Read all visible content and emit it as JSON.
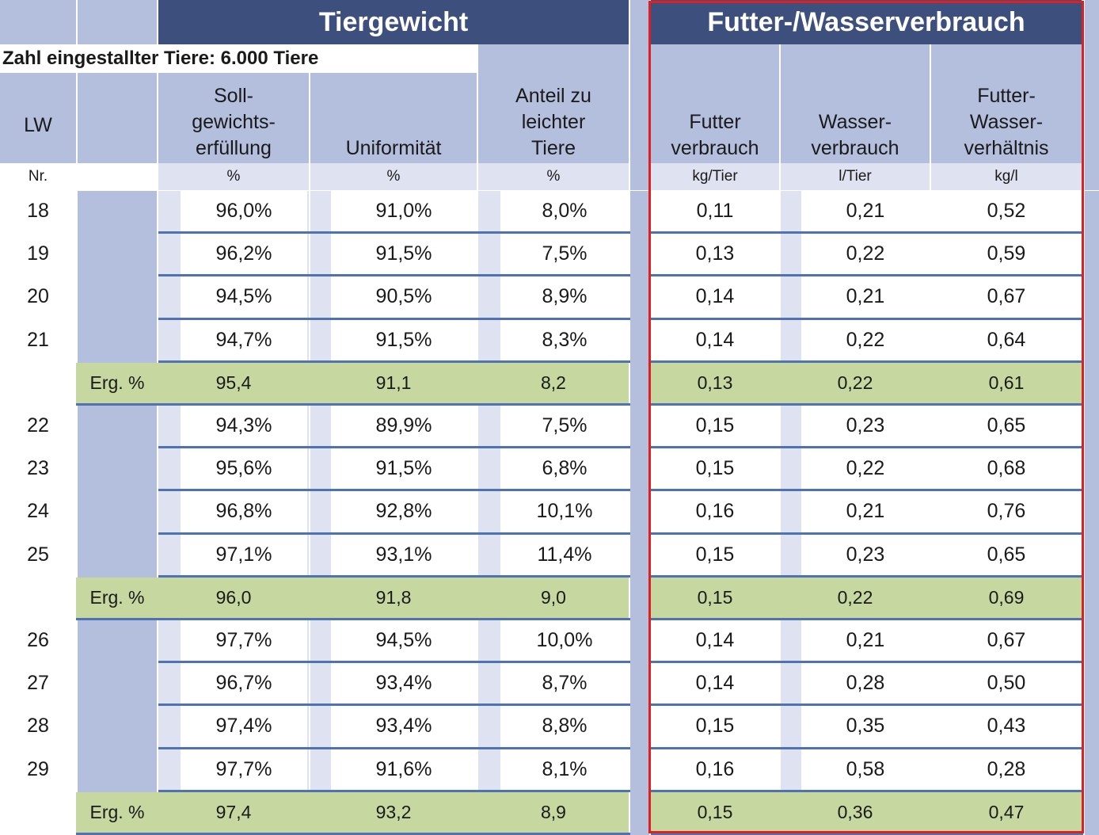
{
  "titles": {
    "tiergewicht": "Tiergewicht",
    "futter_wasser": "Futter-/Wasserverbrauch"
  },
  "subtitle": "Zahl eingestallter Tiere: 6.000 Tiere",
  "headers": {
    "lw": "LW",
    "nr": "Nr.",
    "soll": "Soll-\ngewichts-\nerfüllung",
    "uniform": "Uniformität",
    "anteil": "Anteil zu\nleichter\nTiere",
    "futter": "Futter\nverbrauch",
    "wasser": "Wasser-\nverbrauch",
    "verh": "Futter-\nWasser-\nverhältnis"
  },
  "units": {
    "soll": "%",
    "uniform": "%",
    "anteil": "%",
    "futter": "kg/Tier",
    "wasser": "l/Tier",
    "verh": "kg/l"
  },
  "rows": [
    {
      "type": "data",
      "lw": "18",
      "soll": "96,0%",
      "uniform": "91,0%",
      "anteil": "8,0%",
      "futter": "0,11",
      "wasser": "0,21",
      "verh": "0,52"
    },
    {
      "type": "data",
      "lw": "19",
      "soll": "96,2%",
      "uniform": "91,5%",
      "anteil": "7,5%",
      "futter": "0,13",
      "wasser": "0,22",
      "verh": "0,59"
    },
    {
      "type": "data",
      "lw": "20",
      "soll": "94,5%",
      "uniform": "90,5%",
      "anteil": "8,9%",
      "futter": "0,14",
      "wasser": "0,21",
      "verh": "0,67"
    },
    {
      "type": "data",
      "lw": "21",
      "soll": "94,7%",
      "uniform": "91,5%",
      "anteil": "8,3%",
      "futter": "0,14",
      "wasser": "0,22",
      "verh": "0,64"
    },
    {
      "type": "sum",
      "label": "Erg. %",
      "soll": "95,4",
      "uniform": "91,1",
      "anteil": "8,2",
      "futter": "0,13",
      "wasser": "0,22",
      "verh": "0,61"
    },
    {
      "type": "data",
      "lw": "22",
      "soll": "94,3%",
      "uniform": "89,9%",
      "anteil": "7,5%",
      "futter": "0,15",
      "wasser": "0,23",
      "verh": "0,65"
    },
    {
      "type": "data",
      "lw": "23",
      "soll": "95,6%",
      "uniform": "91,5%",
      "anteil": "6,8%",
      "futter": "0,15",
      "wasser": "0,22",
      "verh": "0,68"
    },
    {
      "type": "data",
      "lw": "24",
      "soll": "96,8%",
      "uniform": "92,8%",
      "anteil": "10,1%",
      "futter": "0,16",
      "wasser": "0,21",
      "verh": "0,76"
    },
    {
      "type": "data",
      "lw": "25",
      "soll": "97,1%",
      "uniform": "93,1%",
      "anteil": "11,4%",
      "futter": "0,15",
      "wasser": "0,23",
      "verh": "0,65"
    },
    {
      "type": "sum",
      "label": "Erg. %",
      "soll": "96,0",
      "uniform": "91,8",
      "anteil": "9,0",
      "futter": "0,15",
      "wasser": "0,22",
      "verh": "0,69"
    },
    {
      "type": "data",
      "lw": "26",
      "soll": "97,7%",
      "uniform": "94,5%",
      "anteil": "10,0%",
      "futter": "0,14",
      "wasser": "0,21",
      "verh": "0,67"
    },
    {
      "type": "data",
      "lw": "27",
      "soll": "96,7%",
      "uniform": "93,4%",
      "anteil": "8,7%",
      "futter": "0,14",
      "wasser": "0,28",
      "verh": "0,50"
    },
    {
      "type": "data",
      "lw": "28",
      "soll": "97,4%",
      "uniform": "93,4%",
      "anteil": "8,8%",
      "futter": "0,15",
      "wasser": "0,35",
      "verh": "0,43"
    },
    {
      "type": "data",
      "lw": "29",
      "soll": "97,7%",
      "uniform": "91,6%",
      "anteil": "8,1%",
      "futter": "0,16",
      "wasser": "0,58",
      "verh": "0,28"
    },
    {
      "type": "sum",
      "label": "Erg. %",
      "soll": "97,4",
      "uniform": "93,2",
      "anteil": "8,9",
      "futter": "0,15",
      "wasser": "0,36",
      "verh": "0,47"
    }
  ],
  "colors": {
    "navy": "#3d4f7c",
    "lavender": "#b4bfdd",
    "green": "#c6d8a0",
    "highlight_border": "#e02020"
  }
}
